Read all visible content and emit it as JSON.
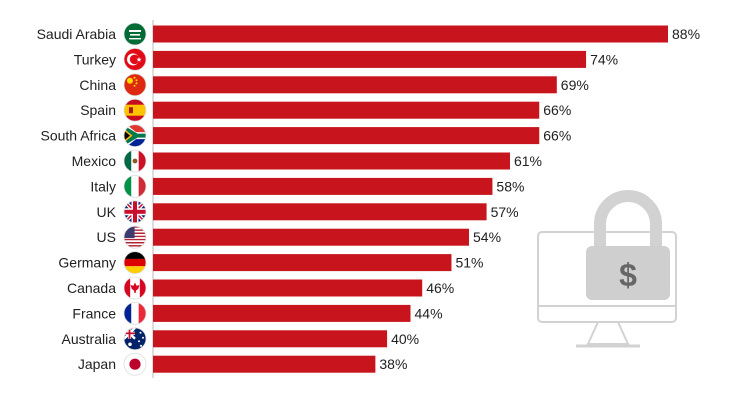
{
  "chart_data": {
    "type": "bar",
    "orientation": "horizontal",
    "categories": [
      "Saudi Arabia",
      "Turkey",
      "China",
      "Spain",
      "South Africa",
      "Mexico",
      "Italy",
      "UK",
      "US",
      "Germany",
      "Canada",
      "France",
      "Australia",
      "Japan"
    ],
    "values": [
      88,
      74,
      69,
      66,
      66,
      61,
      58,
      57,
      54,
      51,
      46,
      44,
      40,
      38
    ],
    "value_labels": [
      "88%",
      "74%",
      "69%",
      "66%",
      "66%",
      "61%",
      "58%",
      "57%",
      "54%",
      "51%",
      "46%",
      "44%",
      "40%",
      "38%"
    ],
    "xlim": [
      0,
      88
    ],
    "grid": false,
    "legend": "none"
  },
  "icons": [
    "saudi-arabia-flag-icon",
    "turkey-flag-icon",
    "china-flag-icon",
    "spain-flag-icon",
    "south-africa-flag-icon",
    "mexico-flag-icon",
    "italy-flag-icon",
    "uk-flag-icon",
    "us-flag-icon",
    "germany-flag-icon",
    "canada-flag-icon",
    "france-flag-icon",
    "australia-flag-icon",
    "japan-flag-icon"
  ],
  "illustration": {
    "icon": "locked-monitor-icon",
    "symbol": "$"
  },
  "colors": {
    "bar": "#c8141c",
    "axis": "#bbbbbb",
    "text": "#222222",
    "illustration": "#d2d2d2",
    "illustration_symbol": "#666666"
  }
}
